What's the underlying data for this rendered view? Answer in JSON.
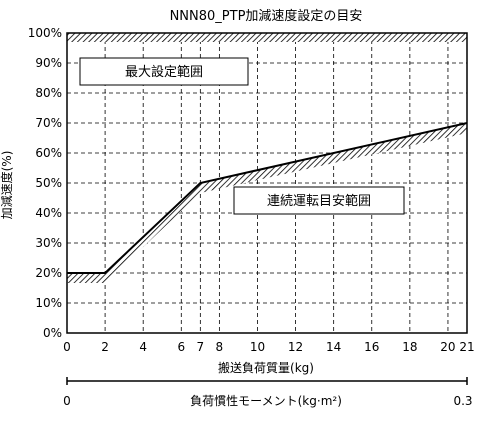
{
  "chart_data": {
    "type": "line",
    "title": "NNN80_PTP加減速度設定の目安",
    "xlabel": "搬送負荷質量(kg)",
    "ylabel": "加減速度(%)",
    "xlim": [
      0,
      21
    ],
    "ylim": [
      0,
      100
    ],
    "xticks": [
      0,
      2,
      4,
      6,
      7,
      8,
      10,
      12,
      14,
      16,
      18,
      20,
      21
    ],
    "yticks": [
      0,
      10,
      20,
      30,
      40,
      50,
      60,
      70,
      80,
      90,
      100
    ],
    "ytick_suffix": "%",
    "grid": true,
    "series": [
      {
        "x": [
          0,
          2,
          7,
          21
        ],
        "y": [
          20,
          20,
          50,
          70
        ]
      }
    ],
    "regions": {
      "upper": "最大設定範囲",
      "lower": "連続運転目安範囲"
    },
    "secondary_axis": {
      "label": "負荷慣性モーメント(kg·m²)",
      "min_label": "0",
      "max_label": "0.3"
    }
  },
  "colors": {
    "line": "#000000",
    "grid": "#000000",
    "background": "#ffffff"
  }
}
